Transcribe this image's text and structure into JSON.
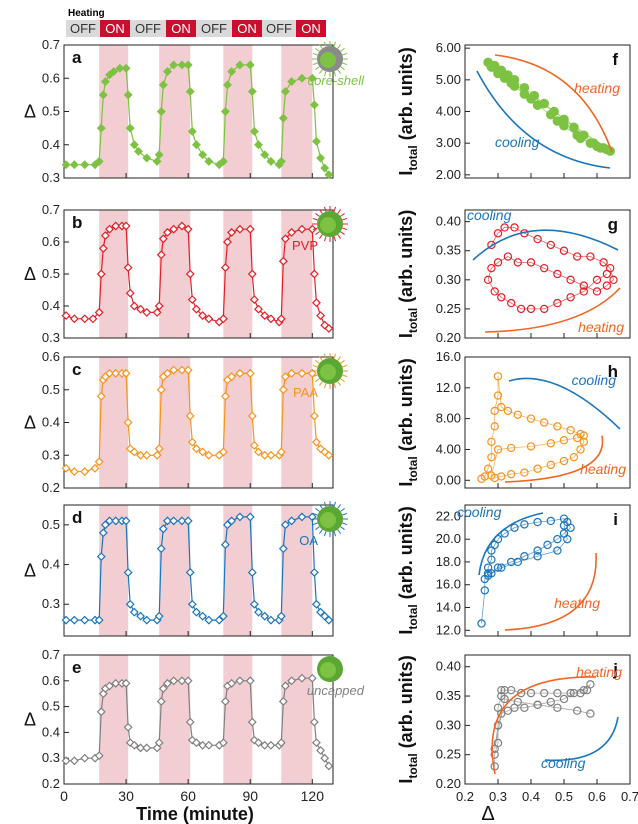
{
  "heating_bar": {
    "title": "Heating",
    "states": [
      "OFF",
      "ON",
      "OFF",
      "ON",
      "OFF",
      "ON",
      "OFF",
      "ON"
    ],
    "off_color": "#d9d9d9",
    "on_color": "#c8102e"
  },
  "shared_x_label": "Time (minute)",
  "right_x_label": "Δ",
  "heating_windows": [
    [
      17,
      31
    ],
    [
      46,
      61
    ],
    [
      77,
      91
    ],
    [
      105,
      120
    ]
  ],
  "heating_band_color": "#f2cdd1",
  "chart_data": [
    {
      "id": "a",
      "panel_letter": "a",
      "type": "line",
      "label": "core-shell",
      "color": "#7dc242",
      "marker": "diamond-filled",
      "ylabel": "Δ",
      "xlim": [
        0,
        130
      ],
      "ylim": [
        0.3,
        0.7
      ],
      "yticks": [
        0.3,
        0.4,
        0.5,
        0.6,
        0.7
      ],
      "xticks": [
        0,
        30,
        60,
        90,
        120
      ],
      "tick_labels_y": [
        "0.3",
        "0.4",
        "0.5",
        "0.6",
        "0.7"
      ],
      "x": [
        1,
        5,
        10,
        15,
        17,
        18,
        19,
        20,
        22,
        24,
        27,
        30,
        31,
        32,
        34,
        36,
        40,
        45,
        46,
        47,
        48,
        50,
        53,
        57,
        60,
        61,
        62,
        64,
        67,
        70,
        75,
        77,
        78,
        79,
        81,
        85,
        90,
        91,
        92,
        94,
        97,
        100,
        104,
        105,
        106,
        107,
        110,
        115,
        120,
        121,
        122,
        124,
        126,
        128
      ],
      "values": [
        0.34,
        0.34,
        0.34,
        0.34,
        0.35,
        0.45,
        0.55,
        0.59,
        0.61,
        0.62,
        0.63,
        0.63,
        0.55,
        0.45,
        0.4,
        0.38,
        0.36,
        0.35,
        0.37,
        0.5,
        0.58,
        0.62,
        0.64,
        0.64,
        0.64,
        0.56,
        0.44,
        0.4,
        0.37,
        0.35,
        0.34,
        0.35,
        0.5,
        0.58,
        0.62,
        0.64,
        0.64,
        0.56,
        0.44,
        0.4,
        0.37,
        0.35,
        0.34,
        0.35,
        0.48,
        0.56,
        0.59,
        0.6,
        0.6,
        0.52,
        0.41,
        0.36,
        0.33,
        0.31
      ]
    },
    {
      "id": "b",
      "panel_letter": "b",
      "type": "line",
      "label": "PVP",
      "color": "#e31e24",
      "marker": "diamond-open",
      "ylabel": "Δ",
      "xlim": [
        0,
        130
      ],
      "ylim": [
        0.3,
        0.7
      ],
      "yticks": [
        0.3,
        0.4,
        0.5,
        0.6,
        0.7
      ],
      "xticks": [
        0,
        30,
        60,
        90,
        120
      ],
      "tick_labels_y": [
        "0.3",
        "0.4",
        "0.5",
        "0.6",
        "0.7"
      ],
      "x": [
        1,
        5,
        10,
        14,
        17,
        18,
        19,
        20,
        22,
        25,
        28,
        30,
        31,
        32,
        34,
        37,
        40,
        45,
        46,
        47,
        48,
        50,
        53,
        57,
        60,
        61,
        62,
        64,
        67,
        70,
        75,
        77,
        78,
        79,
        81,
        85,
        90,
        91,
        92,
        94,
        97,
        100,
        104,
        105,
        106,
        107,
        110,
        115,
        120,
        121,
        122,
        124,
        126,
        128
      ],
      "values": [
        0.37,
        0.36,
        0.36,
        0.36,
        0.38,
        0.5,
        0.58,
        0.62,
        0.64,
        0.65,
        0.65,
        0.65,
        0.52,
        0.44,
        0.4,
        0.39,
        0.38,
        0.38,
        0.4,
        0.56,
        0.61,
        0.63,
        0.64,
        0.65,
        0.64,
        0.5,
        0.42,
        0.39,
        0.37,
        0.36,
        0.35,
        0.36,
        0.52,
        0.6,
        0.63,
        0.64,
        0.64,
        0.5,
        0.42,
        0.39,
        0.37,
        0.36,
        0.35,
        0.36,
        0.54,
        0.61,
        0.63,
        0.64,
        0.64,
        0.5,
        0.41,
        0.37,
        0.34,
        0.33
      ]
    },
    {
      "id": "c",
      "panel_letter": "c",
      "type": "line",
      "label": "PAA",
      "color": "#f7941d",
      "marker": "diamond-open",
      "ylabel": "Δ",
      "xlim": [
        0,
        130
      ],
      "ylim": [
        0.2,
        0.6
      ],
      "yticks": [
        0.2,
        0.3,
        0.4,
        0.5,
        0.6
      ],
      "xticks": [
        0,
        30,
        60,
        90,
        120
      ],
      "tick_labels_y": [
        "0.2",
        "0.3",
        "0.4",
        "0.5",
        "0.6"
      ],
      "x": [
        1,
        5,
        10,
        15,
        17,
        18,
        19,
        20,
        22,
        25,
        28,
        30,
        31,
        32,
        34,
        37,
        40,
        45,
        46,
        47,
        48,
        50,
        53,
        57,
        60,
        61,
        62,
        64,
        67,
        70,
        75,
        77,
        78,
        79,
        81,
        85,
        90,
        91,
        92,
        94,
        97,
        100,
        104,
        105,
        106,
        107,
        110,
        115,
        120,
        121,
        122,
        124,
        126,
        128
      ],
      "values": [
        0.26,
        0.25,
        0.25,
        0.26,
        0.28,
        0.48,
        0.53,
        0.54,
        0.55,
        0.55,
        0.55,
        0.55,
        0.4,
        0.32,
        0.31,
        0.3,
        0.3,
        0.3,
        0.32,
        0.5,
        0.54,
        0.55,
        0.56,
        0.56,
        0.56,
        0.42,
        0.34,
        0.32,
        0.31,
        0.3,
        0.3,
        0.31,
        0.48,
        0.53,
        0.54,
        0.55,
        0.55,
        0.42,
        0.33,
        0.31,
        0.3,
        0.3,
        0.3,
        0.31,
        0.5,
        0.54,
        0.55,
        0.55,
        0.55,
        0.42,
        0.34,
        0.32,
        0.31,
        0.3
      ]
    },
    {
      "id": "d",
      "panel_letter": "d",
      "type": "line",
      "label": "OA",
      "color": "#1b75bc",
      "marker": "diamond-open",
      "ylabel": "Δ",
      "xlim": [
        0,
        130
      ],
      "ylim": [
        0.22,
        0.55
      ],
      "yticks": [
        0.3,
        0.4,
        0.5
      ],
      "xticks": [
        0,
        30,
        60,
        90,
        120
      ],
      "tick_labels_y": [
        "0.3",
        "0.4",
        "0.5"
      ],
      "x": [
        1,
        5,
        10,
        15,
        17,
        18,
        19,
        20,
        22,
        25,
        28,
        30,
        31,
        32,
        34,
        37,
        40,
        45,
        46,
        47,
        48,
        50,
        53,
        57,
        60,
        61,
        62,
        64,
        67,
        70,
        75,
        77,
        78,
        79,
        81,
        85,
        90,
        91,
        92,
        94,
        97,
        100,
        104,
        105,
        106,
        107,
        110,
        115,
        120,
        121,
        122,
        124,
        126,
        128
      ],
      "values": [
        0.26,
        0.26,
        0.26,
        0.26,
        0.26,
        0.42,
        0.48,
        0.5,
        0.51,
        0.51,
        0.51,
        0.51,
        0.38,
        0.3,
        0.28,
        0.27,
        0.26,
        0.26,
        0.27,
        0.44,
        0.49,
        0.51,
        0.51,
        0.51,
        0.51,
        0.38,
        0.3,
        0.28,
        0.27,
        0.26,
        0.26,
        0.27,
        0.45,
        0.5,
        0.51,
        0.52,
        0.52,
        0.38,
        0.3,
        0.28,
        0.27,
        0.26,
        0.26,
        0.27,
        0.44,
        0.5,
        0.51,
        0.52,
        0.52,
        0.38,
        0.3,
        0.28,
        0.27,
        0.26
      ]
    },
    {
      "id": "e",
      "panel_letter": "e",
      "type": "line",
      "label": "uncapped",
      "color": "#808080",
      "marker": "diamond-open",
      "ylabel": "Δ",
      "xlim": [
        0,
        130
      ],
      "ylim": [
        0.2,
        0.7
      ],
      "yticks": [
        0.2,
        0.3,
        0.4,
        0.5,
        0.6,
        0.7
      ],
      "xticks": [
        0,
        30,
        60,
        90,
        120
      ],
      "xtick_labels": [
        "0",
        "30",
        "60",
        "90",
        "120"
      ],
      "tick_labels_y": [
        "0.2",
        "0.3",
        "0.4",
        "0.5",
        "0.6",
        "0.7"
      ],
      "x": [
        1,
        5,
        10,
        15,
        17,
        18,
        19,
        20,
        22,
        25,
        28,
        30,
        31,
        32,
        34,
        37,
        40,
        45,
        46,
        47,
        48,
        50,
        53,
        57,
        60,
        61,
        62,
        64,
        67,
        70,
        75,
        77,
        78,
        79,
        81,
        85,
        90,
        91,
        92,
        94,
        97,
        100,
        104,
        105,
        106,
        107,
        110,
        115,
        120,
        121,
        122,
        124,
        126,
        128
      ],
      "values": [
        0.29,
        0.29,
        0.3,
        0.3,
        0.31,
        0.48,
        0.55,
        0.57,
        0.58,
        0.59,
        0.59,
        0.59,
        0.42,
        0.36,
        0.35,
        0.34,
        0.34,
        0.34,
        0.36,
        0.52,
        0.57,
        0.59,
        0.6,
        0.6,
        0.6,
        0.44,
        0.37,
        0.36,
        0.35,
        0.35,
        0.35,
        0.36,
        0.52,
        0.58,
        0.59,
        0.6,
        0.6,
        0.44,
        0.37,
        0.36,
        0.35,
        0.35,
        0.35,
        0.36,
        0.52,
        0.58,
        0.6,
        0.61,
        0.61,
        0.44,
        0.36,
        0.33,
        0.3,
        0.27
      ]
    },
    {
      "id": "f",
      "panel_letter": "f",
      "type": "scatter",
      "color": "#7dc242",
      "marker": "circle-filled",
      "ylabel_main": "I",
      "ylabel_sub": "total",
      "ylabel_rest": " (arb. units)",
      "xlim": [
        0.2,
        0.7
      ],
      "ylim": [
        1.9,
        6.1
      ],
      "yticks": [
        2,
        3,
        4,
        5,
        6
      ],
      "tick_labels_y": [
        "2.00",
        "3.00",
        "4.00",
        "5.00",
        "6.00"
      ],
      "xticks": [
        0.2,
        0.3,
        0.4,
        0.5,
        0.6,
        0.7
      ],
      "heating_text": "heating",
      "cooling_text": "cooling",
      "x": [
        0.27,
        0.29,
        0.31,
        0.33,
        0.35,
        0.38,
        0.41,
        0.44,
        0.47,
        0.5,
        0.53,
        0.56,
        0.59,
        0.62,
        0.64,
        0.28,
        0.3,
        0.32,
        0.35,
        0.38,
        0.42,
        0.46,
        0.5,
        0.54,
        0.58,
        0.61,
        0.63,
        0.3,
        0.34,
        0.4,
        0.48,
        0.55,
        0.6
      ],
      "values": [
        5.55,
        5.45,
        5.3,
        5.15,
        5.0,
        4.75,
        4.5,
        4.25,
        4.0,
        3.75,
        3.5,
        3.25,
        3.0,
        2.85,
        2.75,
        5.4,
        5.2,
        5.05,
        4.8,
        4.55,
        4.2,
        3.9,
        3.55,
        3.25,
        3.0,
        2.85,
        2.8,
        5.25,
        4.9,
        4.4,
        3.7,
        3.15,
        2.9
      ]
    },
    {
      "id": "g",
      "panel_letter": "g",
      "type": "scatter",
      "color": "#e31e24",
      "marker": "circle-open",
      "ylabel_main": "I",
      "ylabel_sub": "total",
      "ylabel_rest": " (arb. units)",
      "xlim": [
        0.2,
        0.7
      ],
      "ylim": [
        0.2,
        0.42
      ],
      "yticks": [
        0.2,
        0.25,
        0.3,
        0.35,
        0.4
      ],
      "tick_labels_y": [
        "0.20",
        "0.25",
        "0.30",
        "0.35",
        "0.40"
      ],
      "xticks": [
        0.2,
        0.3,
        0.4,
        0.5,
        0.6,
        0.7
      ],
      "heating_text": "heating",
      "cooling_text": "cooling",
      "x": [
        0.28,
        0.3,
        0.32,
        0.35,
        0.38,
        0.42,
        0.46,
        0.5,
        0.54,
        0.58,
        0.62,
        0.64,
        0.65,
        0.63,
        0.6,
        0.56,
        0.52,
        0.48,
        0.44,
        0.4,
        0.36,
        0.33,
        0.3,
        0.28,
        0.27,
        0.29,
        0.31,
        0.34,
        0.37,
        0.4,
        0.44,
        0.48,
        0.52,
        0.56,
        0.6,
        0.63
      ],
      "values": [
        0.36,
        0.38,
        0.39,
        0.39,
        0.38,
        0.37,
        0.36,
        0.35,
        0.34,
        0.34,
        0.33,
        0.32,
        0.3,
        0.29,
        0.28,
        0.29,
        0.3,
        0.31,
        0.32,
        0.33,
        0.33,
        0.34,
        0.33,
        0.32,
        0.3,
        0.28,
        0.27,
        0.26,
        0.25,
        0.25,
        0.25,
        0.26,
        0.27,
        0.28,
        0.3,
        0.31
      ]
    },
    {
      "id": "h",
      "panel_letter": "h",
      "type": "scatter",
      "color": "#f7941d",
      "marker": "circle-open",
      "ylabel_main": "I",
      "ylabel_sub": "total",
      "ylabel_rest": " (arb. units)",
      "xlim": [
        0.2,
        0.7
      ],
      "ylim": [
        -1.0,
        16.0
      ],
      "yticks": [
        0,
        4,
        8,
        12,
        16
      ],
      "tick_labels_y": [
        "0.00",
        "4.00",
        "8.00",
        "12.0",
        "16.0"
      ],
      "xticks": [
        0.2,
        0.3,
        0.4,
        0.5,
        0.6,
        0.7
      ],
      "heating_text": "heating",
      "cooling_text": "cooling",
      "x": [
        0.25,
        0.26,
        0.27,
        0.28,
        0.28,
        0.29,
        0.29,
        0.3,
        0.3,
        0.31,
        0.33,
        0.36,
        0.4,
        0.44,
        0.48,
        0.52,
        0.55,
        0.56,
        0.55,
        0.53,
        0.5,
        0.46,
        0.42,
        0.38,
        0.34,
        0.31,
        0.29,
        0.28,
        0.3,
        0.34,
        0.4,
        0.46,
        0.5,
        0.54,
        0.56
      ],
      "values": [
        0.2,
        0.5,
        1.5,
        3.0,
        5.0,
        7.0,
        9.0,
        11.0,
        13.5,
        9.5,
        9.0,
        8.5,
        8.0,
        7.5,
        7.0,
        6.5,
        6.0,
        5.0,
        4.0,
        3.0,
        2.5,
        2.0,
        1.5,
        1.0,
        0.8,
        0.5,
        0.3,
        0.6,
        4.0,
        4.2,
        4.4,
        4.8,
        5.2,
        5.5,
        5.8
      ]
    },
    {
      "id": "i",
      "panel_letter": "i",
      "type": "scatter",
      "color": "#1b75bc",
      "marker": "circle-open",
      "ylabel_main": "I",
      "ylabel_sub": "total",
      "ylabel_rest": " (arb. units)",
      "xlim": [
        0.2,
        0.7
      ],
      "ylim": [
        11.5,
        23.0
      ],
      "yticks": [
        12,
        14,
        16,
        18,
        20,
        22
      ],
      "tick_labels_y": [
        "12.0",
        "14.0",
        "16.0",
        "18.0",
        "20.0",
        "22.0"
      ],
      "xticks": [
        0.2,
        0.3,
        0.4,
        0.5,
        0.6,
        0.7
      ],
      "heating_text": "heating",
      "cooling_text": "cooling",
      "x": [
        0.25,
        0.26,
        0.26,
        0.27,
        0.27,
        0.28,
        0.28,
        0.29,
        0.3,
        0.32,
        0.35,
        0.38,
        0.42,
        0.46,
        0.5,
        0.51,
        0.52,
        0.5,
        0.48,
        0.45,
        0.42,
        0.38,
        0.34,
        0.3,
        0.28,
        0.27,
        0.31,
        0.36,
        0.42,
        0.48,
        0.51,
        0.5
      ],
      "values": [
        12.6,
        15.5,
        16.5,
        17.0,
        17.5,
        18.2,
        19.0,
        19.5,
        20.0,
        20.5,
        21.0,
        21.3,
        21.5,
        21.6,
        21.8,
        21.5,
        21.0,
        20.5,
        20.0,
        19.5,
        19.0,
        18.5,
        18.0,
        17.5,
        17.0,
        16.8,
        17.5,
        18.0,
        18.5,
        19.0,
        20.0,
        21.2
      ]
    },
    {
      "id": "j",
      "panel_letter": "j",
      "type": "scatter",
      "color": "#808080",
      "marker": "circle-open",
      "ylabel_main": "I",
      "ylabel_sub": "total",
      "ylabel_rest": " (arb. units)",
      "xlim": [
        0.2,
        0.7
      ],
      "ylim": [
        0.2,
        0.42
      ],
      "yticks": [
        0.2,
        0.25,
        0.3,
        0.35,
        0.4
      ],
      "tick_labels_y": [
        "0.20",
        "0.25",
        "0.30",
        "0.35",
        "0.40"
      ],
      "xticks": [
        0.2,
        0.3,
        0.4,
        0.5,
        0.6,
        0.7
      ],
      "xtick_labels": [
        "0.2",
        "0.3",
        "0.4",
        "0.5",
        "0.6",
        "0.7"
      ],
      "heating_text": "heating",
      "cooling_text": "cooling",
      "x": [
        0.29,
        0.29,
        0.3,
        0.3,
        0.3,
        0.31,
        0.31,
        0.32,
        0.34,
        0.37,
        0.4,
        0.44,
        0.48,
        0.52,
        0.55,
        0.57,
        0.58,
        0.56,
        0.53,
        0.5,
        0.46,
        0.42,
        0.38,
        0.35,
        0.33,
        0.31,
        0.3,
        0.29,
        0.32,
        0.36,
        0.42,
        0.48,
        0.54,
        0.58
      ],
      "values": [
        0.23,
        0.25,
        0.27,
        0.3,
        0.33,
        0.35,
        0.36,
        0.36,
        0.36,
        0.355,
        0.355,
        0.355,
        0.355,
        0.355,
        0.355,
        0.36,
        0.37,
        0.36,
        0.355,
        0.345,
        0.34,
        0.335,
        0.33,
        0.33,
        0.325,
        0.32,
        0.3,
        0.26,
        0.345,
        0.34,
        0.335,
        0.33,
        0.325,
        0.32
      ]
    }
  ],
  "x_tick_labels_right": [
    "0.2",
    "0.3",
    "0.4",
    "0.5",
    "0.6",
    "0.7"
  ],
  "x_tick_labels_left": [
    "0",
    "30",
    "60",
    "90",
    "120"
  ]
}
